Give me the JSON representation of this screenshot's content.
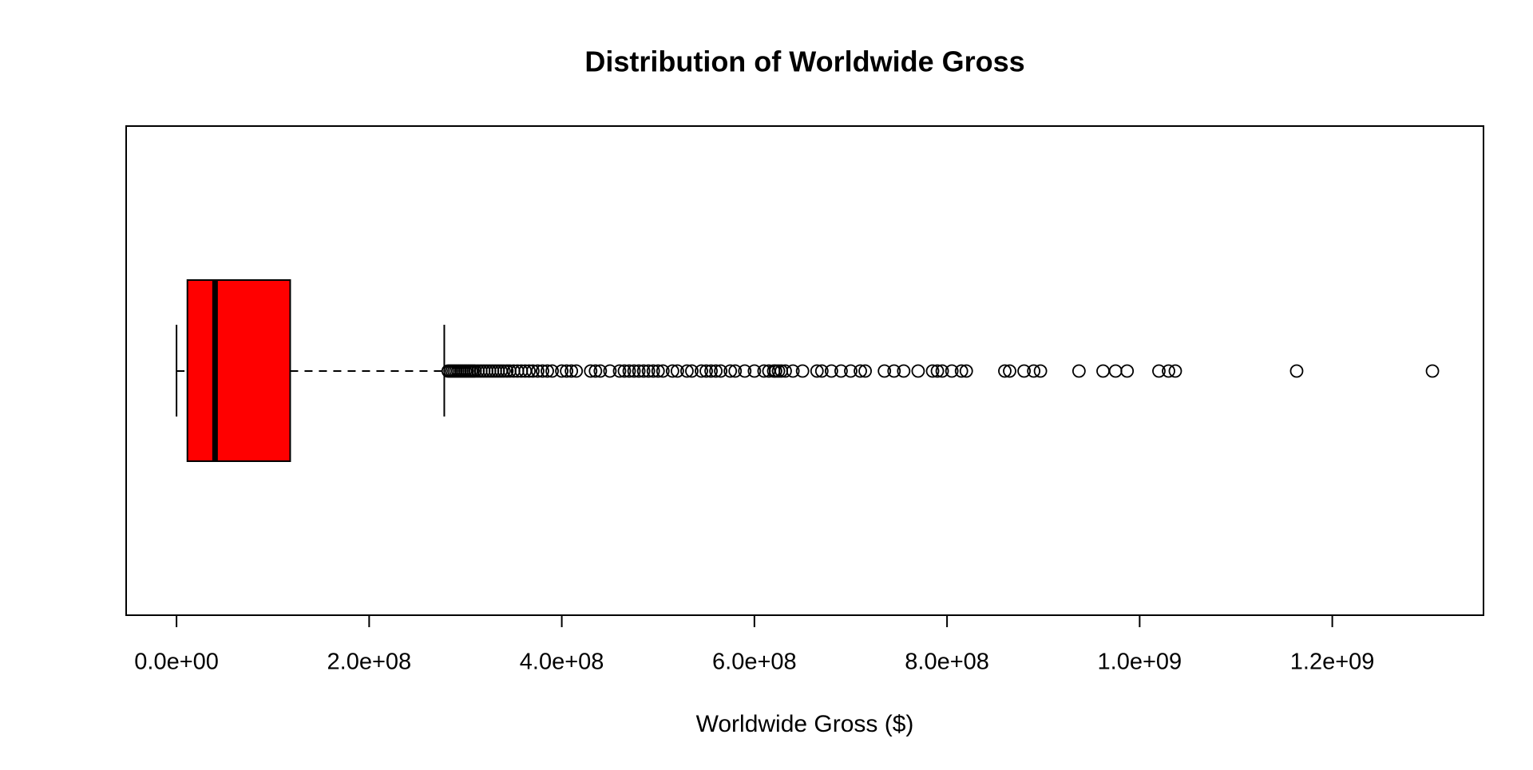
{
  "chart_data": {
    "type": "boxplot",
    "title": "Distribution of Worldwide Gross",
    "xlabel": "Worldwide Gross ($)",
    "color": "#ff0000",
    "whisker_low": 0,
    "q1": 11300000.0,
    "median": 40000000.0,
    "q3": 118000000.0,
    "whisker_high": 278000000.0,
    "outliers": [
      282000000.0,
      284000000.0,
      286000000.0,
      288000000.0,
      290000000.0,
      292000000.0,
      294000000.0,
      296000000.0,
      298000000.0,
      300000000.0,
      302000000.0,
      304000000.0,
      306000000.0,
      308000000.0,
      310000000.0,
      313000000.0,
      316000000.0,
      319000000.0,
      322000000.0,
      325000000.0,
      328000000.0,
      331000000.0,
      334000000.0,
      337000000.0,
      340000000.0,
      343000000.0,
      346000000.0,
      350000000.0,
      354000000.0,
      358000000.0,
      362000000.0,
      366000000.0,
      370000000.0,
      375000000.0,
      380000000.0,
      385000000.0,
      390000000.0,
      400000000.0,
      405000000.0,
      410000000.0,
      415000000.0,
      430000000.0,
      435000000.0,
      440000000.0,
      450000000.0,
      460000000.0,
      465000000.0,
      470000000.0,
      475000000.0,
      480000000.0,
      485000000.0,
      490000000.0,
      495000000.0,
      500000000.0,
      505000000.0,
      515000000.0,
      520000000.0,
      530000000.0,
      535000000.0,
      545000000.0,
      550000000.0,
      555000000.0,
      560000000.0,
      565000000.0,
      575000000.0,
      580000000.0,
      590000000.0,
      600000000.0,
      610000000.0,
      615000000.0,
      620000000.0,
      622000000.0,
      625000000.0,
      628000000.0,
      632000000.0,
      640000000.0,
      650000000.0,
      665000000.0,
      670000000.0,
      680000000.0,
      690000000.0,
      700000000.0,
      710000000.0,
      715000000.0,
      735000000.0,
      745000000.0,
      755000000.0,
      770000000.0,
      785000000.0,
      790000000.0,
      795000000.0,
      805000000.0,
      815000000.0,
      820000000.0,
      860000000.0,
      865000000.0,
      880000000.0,
      890000000.0,
      897000000.0,
      937000000.0,
      962000000.0,
      975000000.0,
      987000000.0,
      1020000000.0,
      1030000000.0,
      1037000000.0,
      1163000000.0,
      1304000000.0
    ],
    "xlim": [
      -52300000.0,
      1357000000.0
    ],
    "xticks": [
      {
        "value": 0,
        "label": "0.0e+00"
      },
      {
        "value": 200000000.0,
        "label": "2.0e+08"
      },
      {
        "value": 400000000.0,
        "label": "4.0e+08"
      },
      {
        "value": 600000000.0,
        "label": "6.0e+08"
      },
      {
        "value": 800000000.0,
        "label": "8.0e+08"
      },
      {
        "value": 1000000000.0,
        "label": "1.0e+09"
      },
      {
        "value": 1200000000.0,
        "label": "1.2e+09"
      }
    ]
  }
}
